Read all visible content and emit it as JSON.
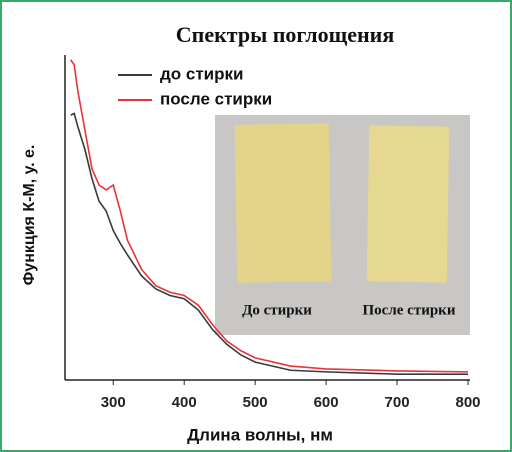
{
  "chart_data": {
    "type": "line",
    "title": "Спектры поглощения",
    "x_label": "Длина волны, нм",
    "y_label": "Функция К-М, у. е.",
    "x": [
      240,
      245,
      250,
      260,
      270,
      280,
      290,
      300,
      310,
      320,
      340,
      360,
      380,
      400,
      420,
      440,
      460,
      480,
      500,
      550,
      600,
      700,
      800
    ],
    "series": [
      {
        "name": "до стирки",
        "color": "#3a3a3a",
        "values": [
          0.815,
          0.82,
          0.78,
          0.71,
          0.62,
          0.55,
          0.52,
          0.46,
          0.42,
          0.385,
          0.32,
          0.28,
          0.26,
          0.25,
          0.215,
          0.155,
          0.11,
          0.077,
          0.055,
          0.03,
          0.025,
          0.018,
          0.018
        ]
      },
      {
        "name": "после стирки",
        "color": "#e8343a",
        "values": [
          0.985,
          0.97,
          0.89,
          0.77,
          0.65,
          0.6,
          0.585,
          0.6,
          0.52,
          0.43,
          0.34,
          0.29,
          0.27,
          0.26,
          0.23,
          0.17,
          0.12,
          0.09,
          0.068,
          0.043,
          0.034,
          0.028,
          0.025
        ]
      }
    ],
    "xlim": [
      232,
      800
    ],
    "xticks": [
      300,
      400,
      500,
      600,
      700,
      800
    ],
    "ylim": [
      0,
      1
    ],
    "inset_labels": [
      "До стирки",
      "После стирки"
    ]
  }
}
